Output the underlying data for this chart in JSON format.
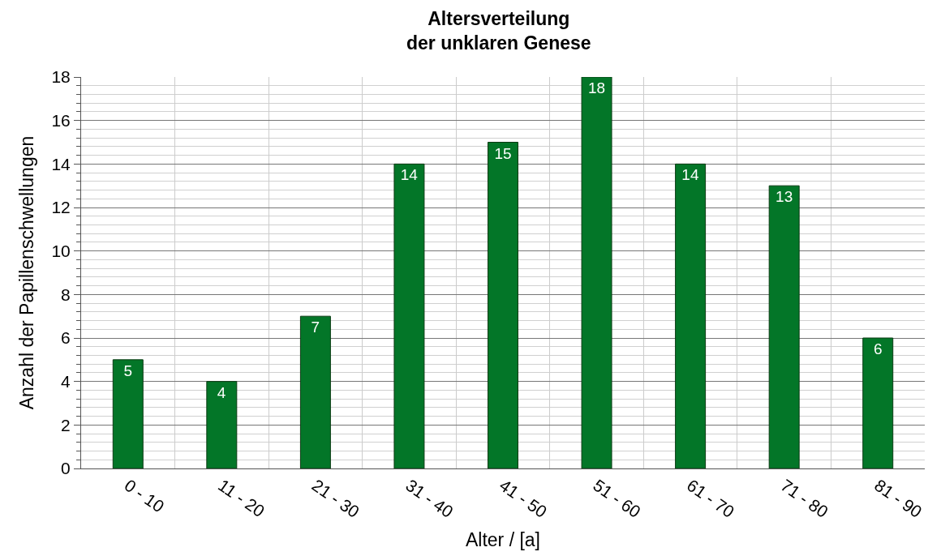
{
  "chart_data": {
    "type": "bar",
    "title": "Altersverteilung\nder unklaren Genese",
    "xlabel": "Alter / [a]",
    "ylabel": "Anzahl der Papillenschwellungen",
    "categories": [
      "0 - 10",
      "11 - 20",
      "21 - 30",
      "31 - 40",
      "41 - 50",
      "51 - 60",
      "61 - 70",
      "71 - 80",
      "81 - 90"
    ],
    "values": [
      5,
      4,
      7,
      14,
      15,
      18,
      14,
      13,
      6
    ],
    "color": "#037628",
    "ylim": [
      0,
      18
    ],
    "yticks": [
      0,
      2,
      4,
      6,
      8,
      10,
      12,
      14,
      16,
      18
    ],
    "grid": true,
    "data_labels": true
  }
}
